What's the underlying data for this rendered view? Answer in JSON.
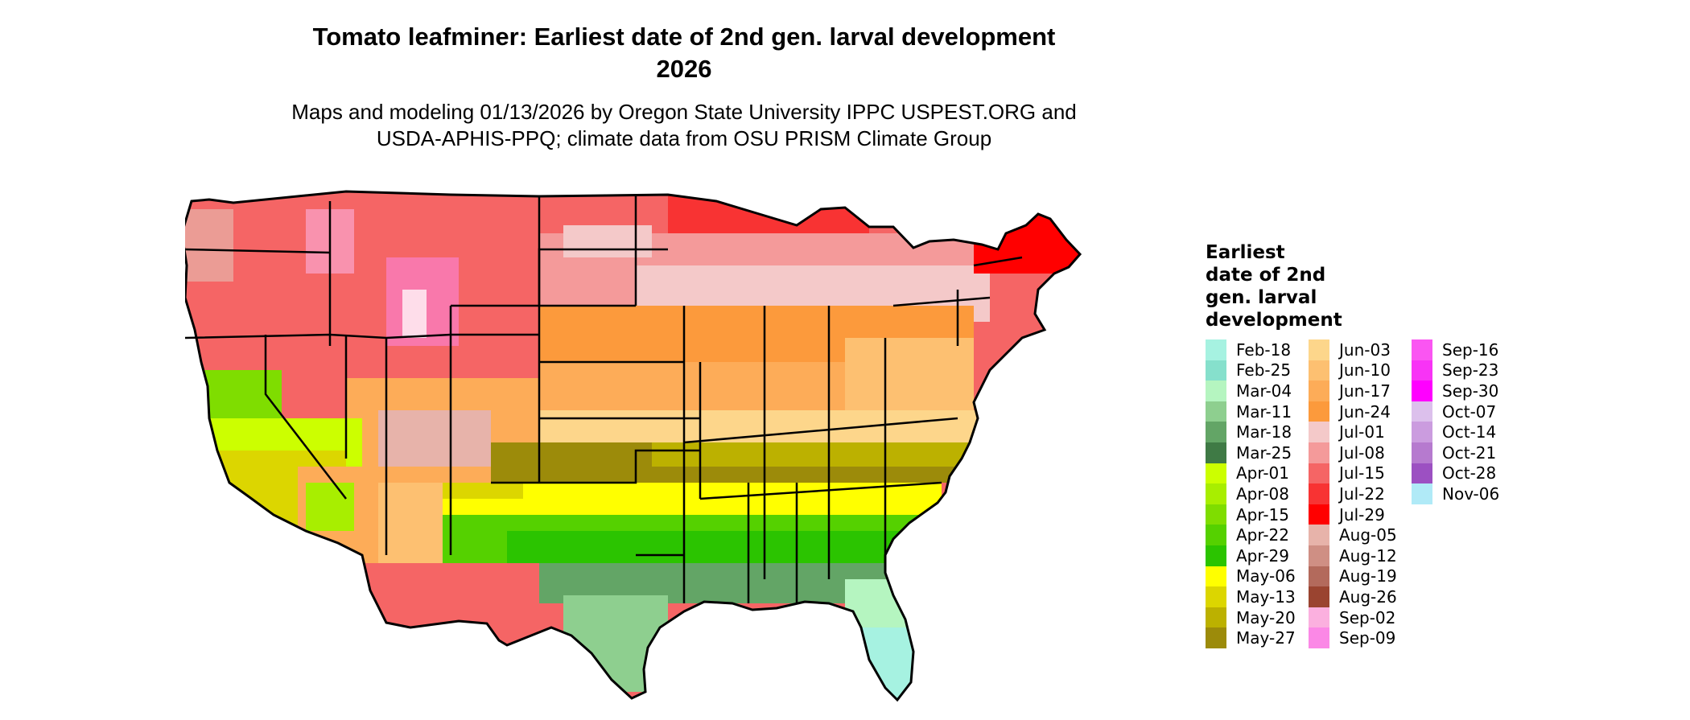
{
  "title": {
    "line1": "Tomato leafminer: Earliest date of 2nd gen. larval development",
    "line2": "2026"
  },
  "subtitle": {
    "line1": "Maps and modeling 01/13/2026 by Oregon State University IPPC USPEST.ORG and",
    "line2": "USDA-APHIS-PPQ; climate data from OSU PRISM Climate Group"
  },
  "legend": {
    "title_lines": [
      "Earliest",
      "date of 2nd",
      "gen. larval",
      "development"
    ],
    "items": [
      {
        "label": "Feb-18",
        "color": "#a6f2e1"
      },
      {
        "label": "Feb-25",
        "color": "#86e0cc"
      },
      {
        "label": "Mar-04",
        "color": "#b5f5c0"
      },
      {
        "label": "Mar-11",
        "color": "#8ecf8f"
      },
      {
        "label": "Mar-18",
        "color": "#63a566"
      },
      {
        "label": "Mar-25",
        "color": "#3f7a45"
      },
      {
        "label": "Apr-01",
        "color": "#ccff00"
      },
      {
        "label": "Apr-08",
        "color": "#a8ee00"
      },
      {
        "label": "Apr-15",
        "color": "#7fdd00"
      },
      {
        "label": "Apr-22",
        "color": "#55d100"
      },
      {
        "label": "Apr-29",
        "color": "#2bc400"
      },
      {
        "label": "May-06",
        "color": "#ffff00"
      },
      {
        "label": "May-13",
        "color": "#dcd600"
      },
      {
        "label": "May-20",
        "color": "#bcb100"
      },
      {
        "label": "May-27",
        "color": "#9c8b0a"
      },
      {
        "label": "Jun-03",
        "color": "#fdd68b"
      },
      {
        "label": "Jun-10",
        "color": "#fdc071"
      },
      {
        "label": "Jun-17",
        "color": "#fdac58"
      },
      {
        "label": "Jun-24",
        "color": "#fc9a3c"
      },
      {
        "label": "Jul-01",
        "color": "#f4c9c9"
      },
      {
        "label": "Jul-08",
        "color": "#f49a9a"
      },
      {
        "label": "Jul-15",
        "color": "#f56565"
      },
      {
        "label": "Jul-22",
        "color": "#f83333"
      },
      {
        "label": "Jul-29",
        "color": "#ff0000"
      },
      {
        "label": "Aug-05",
        "color": "#e7b3aa"
      },
      {
        "label": "Aug-12",
        "color": "#cf8f84"
      },
      {
        "label": "Aug-19",
        "color": "#b36a5c"
      },
      {
        "label": "Aug-26",
        "color": "#9a4430"
      },
      {
        "label": "Sep-02",
        "color": "#fbb0df"
      },
      {
        "label": "Sep-09",
        "color": "#fb88e6"
      },
      {
        "label": "Sep-16",
        "color": "#fa55f2"
      },
      {
        "label": "Sep-23",
        "color": "#f833f6"
      },
      {
        "label": "Sep-30",
        "color": "#ff00ff"
      },
      {
        "label": "Oct-07",
        "color": "#dcc0ec"
      },
      {
        "label": "Oct-14",
        "color": "#cb9cdf"
      },
      {
        "label": "Oct-21",
        "color": "#b67acf"
      },
      {
        "label": "Oct-28",
        "color": "#9c50c2"
      },
      {
        "label": "Nov-06",
        "color": "#b0eaf7"
      }
    ]
  }
}
